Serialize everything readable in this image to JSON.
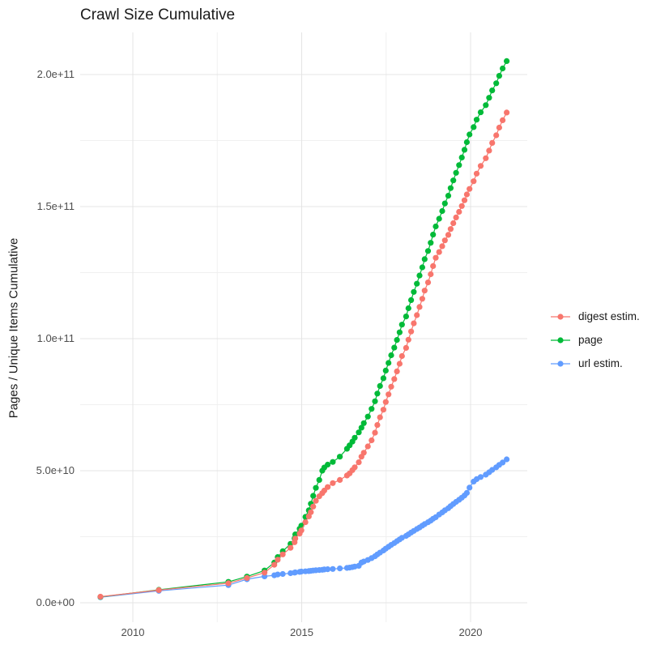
{
  "title": "Crawl Size Cumulative",
  "axes": {
    "y_label": "Pages / Unique Items Cumulative",
    "x_ticks": [
      {
        "label": "2010",
        "year": 2010
      },
      {
        "label": "2015",
        "year": 2015
      },
      {
        "label": "2020",
        "year": 2020
      }
    ],
    "y_ticks": [
      {
        "label": "0.0e+00",
        "value_billions": 0
      },
      {
        "label": "5.0e+10",
        "value_billions": 50
      },
      {
        "label": "1.0e+11",
        "value_billions": 100
      },
      {
        "label": "1.5e+11",
        "value_billions": 150
      },
      {
        "label": "2.0e+11",
        "value_billions": 200
      }
    ],
    "x_minor_gridlines_years": [
      2012.5,
      2017.5
    ],
    "y_minor_gridlines_billions": [
      25,
      75,
      125,
      175
    ]
  },
  "legend": {
    "position": "right",
    "items": [
      {
        "label": "digest estim.",
        "color": "#F8766D"
      },
      {
        "label": "page",
        "color": "#00BA38"
      },
      {
        "label": "url estim.",
        "color": "#619CFF"
      }
    ]
  },
  "style": {
    "background": "#FFFFFF",
    "grid_major_color": "#E4E4E4",
    "grid_minor_color": "#F0F0F0",
    "text_color": "#1a1a1a",
    "tick_text_color": "#4d4d4d"
  },
  "chart_data": {
    "type": "scatter",
    "marker": "point-with-line",
    "title": "Crawl Size Cumulative",
    "xlabel": "",
    "ylabel": "Pages / Unique Items Cumulative",
    "xlim": [
      2008.4,
      2021.7
    ],
    "ylim_billions": [
      -10,
      215
    ],
    "grid": true,
    "legend_position": "right-center",
    "value_unit": "1e9 (billions of pages / unique items, cumulative)",
    "x_years": [
      2009.04,
      2010.77,
      2012.83,
      2013.38,
      2013.9,
      2014.19,
      2014.29,
      2014.44,
      2014.67,
      2014.79,
      2014.81,
      2014.94,
      2014.99,
      2015.11,
      2015.21,
      2015.27,
      2015.34,
      2015.42,
      2015.52,
      2015.61,
      2015.67,
      2015.77,
      2015.92,
      2016.13,
      2016.34,
      2016.42,
      2016.5,
      2016.57,
      2016.69,
      2016.77,
      2016.84,
      2016.96,
      2017.07,
      2017.17,
      2017.24,
      2017.32,
      2017.42,
      2017.49,
      2017.57,
      2017.65,
      2017.74,
      2017.82,
      2017.9,
      2017.97,
      2018.09,
      2018.16,
      2018.24,
      2018.32,
      2018.41,
      2018.49,
      2018.57,
      2018.64,
      2018.74,
      2018.82,
      2018.89,
      2018.97,
      2019.07,
      2019.16,
      2019.24,
      2019.34,
      2019.41,
      2019.49,
      2019.57,
      2019.66,
      2019.74,
      2019.82,
      2019.89,
      2019.97,
      2020.09,
      2020.18,
      2020.3,
      2020.45,
      2020.55,
      2020.64,
      2020.76,
      2020.85,
      2020.95,
      2021.07
    ],
    "series": [
      {
        "name": "url estim.",
        "color": "#619CFF",
        "values_billions": [
          2.1,
          4.5,
          6.7,
          8.9,
          10.0,
          10.4,
          10.7,
          10.9,
          11.2,
          11.4,
          11.5,
          11.7,
          11.8,
          11.9,
          12.0,
          12.1,
          12.2,
          12.3,
          12.4,
          12.5,
          12.6,
          12.7,
          12.8,
          13.0,
          13.2,
          13.3,
          13.5,
          13.7,
          14.0,
          15.2,
          15.6,
          16.2,
          16.9,
          17.6,
          18.3,
          19.0,
          19.8,
          20.5,
          21.2,
          21.9,
          22.6,
          23.3,
          24.0,
          24.6,
          25.3,
          25.9,
          26.6,
          27.2,
          27.9,
          28.5,
          29.2,
          29.8,
          30.5,
          31.1,
          31.8,
          32.4,
          33.4,
          34.2,
          35.0,
          35.8,
          36.6,
          37.4,
          38.2,
          39.0,
          39.8,
          40.6,
          41.6,
          43.6,
          45.9,
          46.8,
          47.6,
          48.5,
          49.4,
          50.3,
          51.3,
          52.2,
          53.1,
          54.3
        ]
      },
      {
        "name": "page",
        "color": "#00BA38",
        "values_billions": [
          2.2,
          4.9,
          7.9,
          9.9,
          12.2,
          15.2,
          17.3,
          19.5,
          22.3,
          24.4,
          25.9,
          28.0,
          29.2,
          32.5,
          35.0,
          37.5,
          40.5,
          43.5,
          46.5,
          50.0,
          51.2,
          52.3,
          53.3,
          55.3,
          58.3,
          59.6,
          61.0,
          62.5,
          64.5,
          66.3,
          68.0,
          70.5,
          73.4,
          76.3,
          79.2,
          82.1,
          85.0,
          87.9,
          90.8,
          93.7,
          96.6,
          99.5,
          102.4,
          105.3,
          108.4,
          111.5,
          114.6,
          117.7,
          120.8,
          123.9,
          127.0,
          130.1,
          133.2,
          136.3,
          139.4,
          142.5,
          145.4,
          148.3,
          151.2,
          154.1,
          157.0,
          159.9,
          162.8,
          165.7,
          168.6,
          171.5,
          174.4,
          177.3,
          180.1,
          182.9,
          185.7,
          188.4,
          191.2,
          194.0,
          196.7,
          199.5,
          202.3,
          205.1
        ]
      },
      {
        "name": "digest estim.",
        "color": "#F8766D",
        "values_billions": [
          2.3,
          4.8,
          7.4,
          9.4,
          11.4,
          14.4,
          16.3,
          18.3,
          20.8,
          22.9,
          24.3,
          26.2,
          27.4,
          30.5,
          32.7,
          34.3,
          36.4,
          38.6,
          40.3,
          41.5,
          42.5,
          43.8,
          45.3,
          46.5,
          48.2,
          49.0,
          50.2,
          51.3,
          53.2,
          55.3,
          56.8,
          59.2,
          61.5,
          64.4,
          67.3,
          70.2,
          73.1,
          76.0,
          78.9,
          81.8,
          84.7,
          87.6,
          90.5,
          93.4,
          96.5,
          99.6,
          102.7,
          105.8,
          108.9,
          112.0,
          115.1,
          118.2,
          121.3,
          124.4,
          127.5,
          130.6,
          132.8,
          135.0,
          137.2,
          139.3,
          141.5,
          143.7,
          145.9,
          148.0,
          150.2,
          152.4,
          154.6,
          156.7,
          159.6,
          162.5,
          165.4,
          168.3,
          171.2,
          174.1,
          177.0,
          179.9,
          182.7,
          185.6
        ]
      }
    ]
  }
}
